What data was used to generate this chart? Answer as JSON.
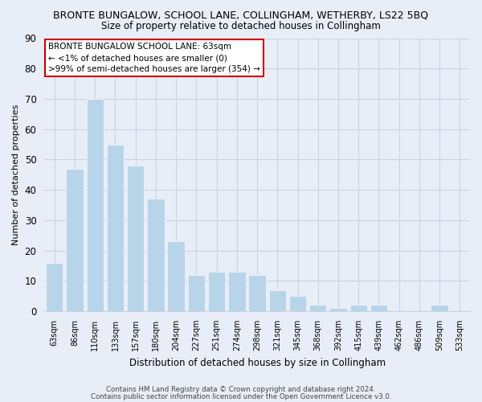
{
  "title": "BRONTE BUNGALOW, SCHOOL LANE, COLLINGHAM, WETHERBY, LS22 5BQ",
  "subtitle": "Size of property relative to detached houses in Collingham",
  "xlabel": "Distribution of detached houses by size in Collingham",
  "ylabel": "Number of detached properties",
  "categories": [
    "63sqm",
    "86sqm",
    "110sqm",
    "133sqm",
    "157sqm",
    "180sqm",
    "204sqm",
    "227sqm",
    "251sqm",
    "274sqm",
    "298sqm",
    "321sqm",
    "345sqm",
    "368sqm",
    "392sqm",
    "415sqm",
    "439sqm",
    "462sqm",
    "486sqm",
    "509sqm",
    "533sqm"
  ],
  "values": [
    16,
    47,
    70,
    55,
    48,
    37,
    23,
    12,
    13,
    13,
    12,
    7,
    5,
    2,
    1,
    2,
    2,
    0,
    0,
    2,
    0
  ],
  "bar_color_normal": "#b8d4e8",
  "bar_color_highlight": "#b8d4e8",
  "ylim": [
    0,
    90
  ],
  "yticks": [
    0,
    10,
    20,
    30,
    40,
    50,
    60,
    70,
    80,
    90
  ],
  "annotation_title": "BRONTE BUNGALOW SCHOOL LANE: 63sqm",
  "annotation_line1": "← <1% of detached houses are smaller (0)",
  "annotation_line2": ">99% of semi-detached houses are larger (354) →",
  "footer_line1": "Contains HM Land Registry data © Crown copyright and database right 2024.",
  "footer_line2": "Contains public sector information licensed under the Open Government Licence v3.0.",
  "bg_color": "#e8eef8",
  "grid_color": "#c8d4e4",
  "title_fontsize": 9,
  "subtitle_fontsize": 8.5
}
